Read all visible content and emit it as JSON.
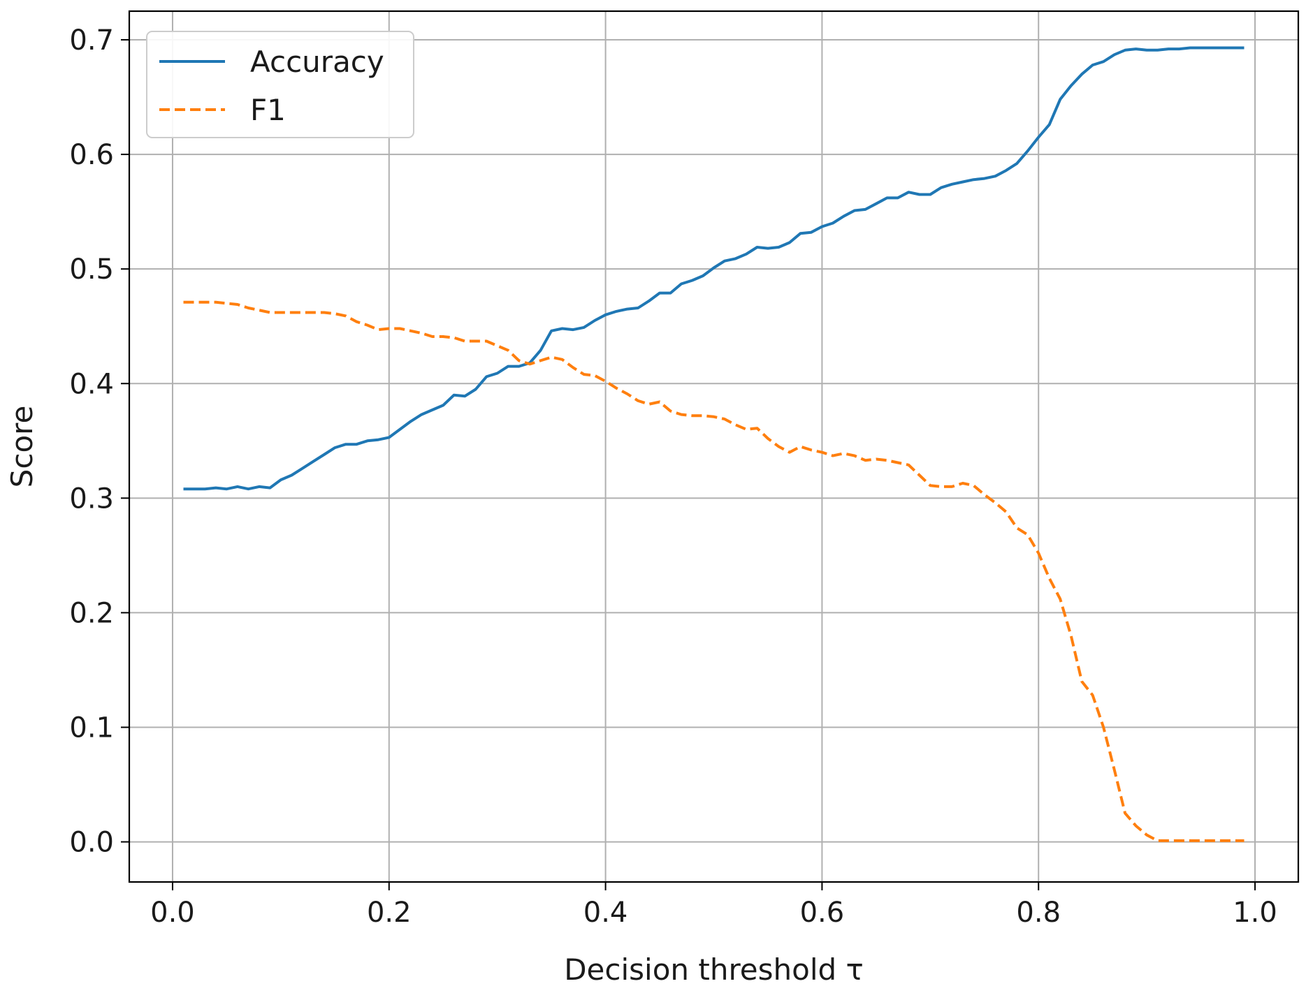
{
  "chart_data": {
    "type": "line",
    "title": "",
    "xlabel": "Decision threshold τ",
    "ylabel": "Score",
    "xlim": [
      -0.04,
      1.04
    ],
    "ylim": [
      -0.035,
      0.725
    ],
    "xticks": [
      "0.0",
      "0.2",
      "0.4",
      "0.6",
      "0.8",
      "1.0"
    ],
    "yticks": [
      "0.0",
      "0.1",
      "0.2",
      "0.3",
      "0.4",
      "0.5",
      "0.6",
      "0.7"
    ],
    "grid": true,
    "legend_position": "top-left",
    "x": [
      0.01,
      0.02,
      0.03,
      0.04,
      0.05,
      0.06,
      0.07,
      0.08,
      0.09,
      0.1,
      0.11,
      0.12,
      0.13,
      0.14,
      0.15,
      0.16,
      0.17,
      0.18,
      0.19,
      0.2,
      0.21,
      0.22,
      0.23,
      0.24,
      0.25,
      0.26,
      0.27,
      0.28,
      0.29,
      0.3,
      0.31,
      0.32,
      0.33,
      0.34,
      0.35,
      0.36,
      0.37,
      0.38,
      0.39,
      0.4,
      0.41,
      0.42,
      0.43,
      0.44,
      0.45,
      0.46,
      0.47,
      0.48,
      0.49,
      0.5,
      0.51,
      0.52,
      0.53,
      0.54,
      0.55,
      0.56,
      0.57,
      0.58,
      0.59,
      0.6,
      0.61,
      0.62,
      0.63,
      0.64,
      0.65,
      0.66,
      0.67,
      0.68,
      0.69,
      0.7,
      0.71,
      0.72,
      0.73,
      0.74,
      0.75,
      0.76,
      0.77,
      0.78,
      0.79,
      0.8,
      0.81,
      0.82,
      0.83,
      0.84,
      0.85,
      0.86,
      0.87,
      0.88,
      0.89,
      0.9,
      0.91,
      0.92,
      0.93,
      0.94,
      0.95,
      0.96,
      0.97,
      0.98,
      0.99
    ],
    "series": [
      {
        "name": "Accuracy",
        "color": "#1f77b4",
        "dash": "solid",
        "values": [
          0.308,
          0.308,
          0.308,
          0.309,
          0.308,
          0.31,
          0.308,
          0.31,
          0.309,
          0.316,
          0.32,
          0.326,
          0.332,
          0.338,
          0.344,
          0.347,
          0.347,
          0.35,
          0.351,
          0.353,
          0.36,
          0.367,
          0.373,
          0.377,
          0.381,
          0.39,
          0.389,
          0.395,
          0.406,
          0.409,
          0.415,
          0.415,
          0.418,
          0.429,
          0.446,
          0.448,
          0.447,
          0.449,
          0.455,
          0.46,
          0.463,
          0.465,
          0.466,
          0.472,
          0.479,
          0.479,
          0.487,
          0.49,
          0.494,
          0.501,
          0.507,
          0.509,
          0.513,
          0.519,
          0.518,
          0.519,
          0.523,
          0.531,
          0.532,
          0.537,
          0.54,
          0.546,
          0.551,
          0.552,
          0.557,
          0.562,
          0.562,
          0.567,
          0.565,
          0.565,
          0.571,
          0.574,
          0.576,
          0.578,
          0.579,
          0.581,
          0.586,
          0.592,
          0.603,
          0.615,
          0.626,
          0.648,
          0.66,
          0.67,
          0.678,
          0.681,
          0.687,
          0.691,
          0.692,
          0.691,
          0.691,
          0.692,
          0.692,
          0.693,
          0.693,
          0.693,
          0.693,
          0.693,
          0.693
        ]
      },
      {
        "name": "F1",
        "color": "#ff7f0e",
        "dash": "dashed",
        "values": [
          0.471,
          0.471,
          0.471,
          0.471,
          0.47,
          0.469,
          0.466,
          0.464,
          0.462,
          0.462,
          0.462,
          0.462,
          0.462,
          0.462,
          0.461,
          0.459,
          0.454,
          0.451,
          0.447,
          0.448,
          0.448,
          0.446,
          0.444,
          0.441,
          0.441,
          0.44,
          0.437,
          0.437,
          0.437,
          0.433,
          0.429,
          0.42,
          0.417,
          0.42,
          0.423,
          0.421,
          0.414,
          0.408,
          0.407,
          0.402,
          0.396,
          0.391,
          0.385,
          0.382,
          0.384,
          0.376,
          0.373,
          0.372,
          0.372,
          0.371,
          0.369,
          0.364,
          0.36,
          0.361,
          0.352,
          0.345,
          0.34,
          0.345,
          0.342,
          0.34,
          0.337,
          0.339,
          0.337,
          0.333,
          0.334,
          0.333,
          0.331,
          0.329,
          0.32,
          0.311,
          0.31,
          0.31,
          0.313,
          0.311,
          0.303,
          0.296,
          0.288,
          0.274,
          0.268,
          0.252,
          0.23,
          0.212,
          0.18,
          0.14,
          0.128,
          0.1,
          0.063,
          0.025,
          0.014,
          0.006,
          0.001,
          0.001,
          0.001,
          0.001,
          0.001,
          0.001,
          0.001,
          0.001,
          0.001
        ]
      }
    ]
  }
}
